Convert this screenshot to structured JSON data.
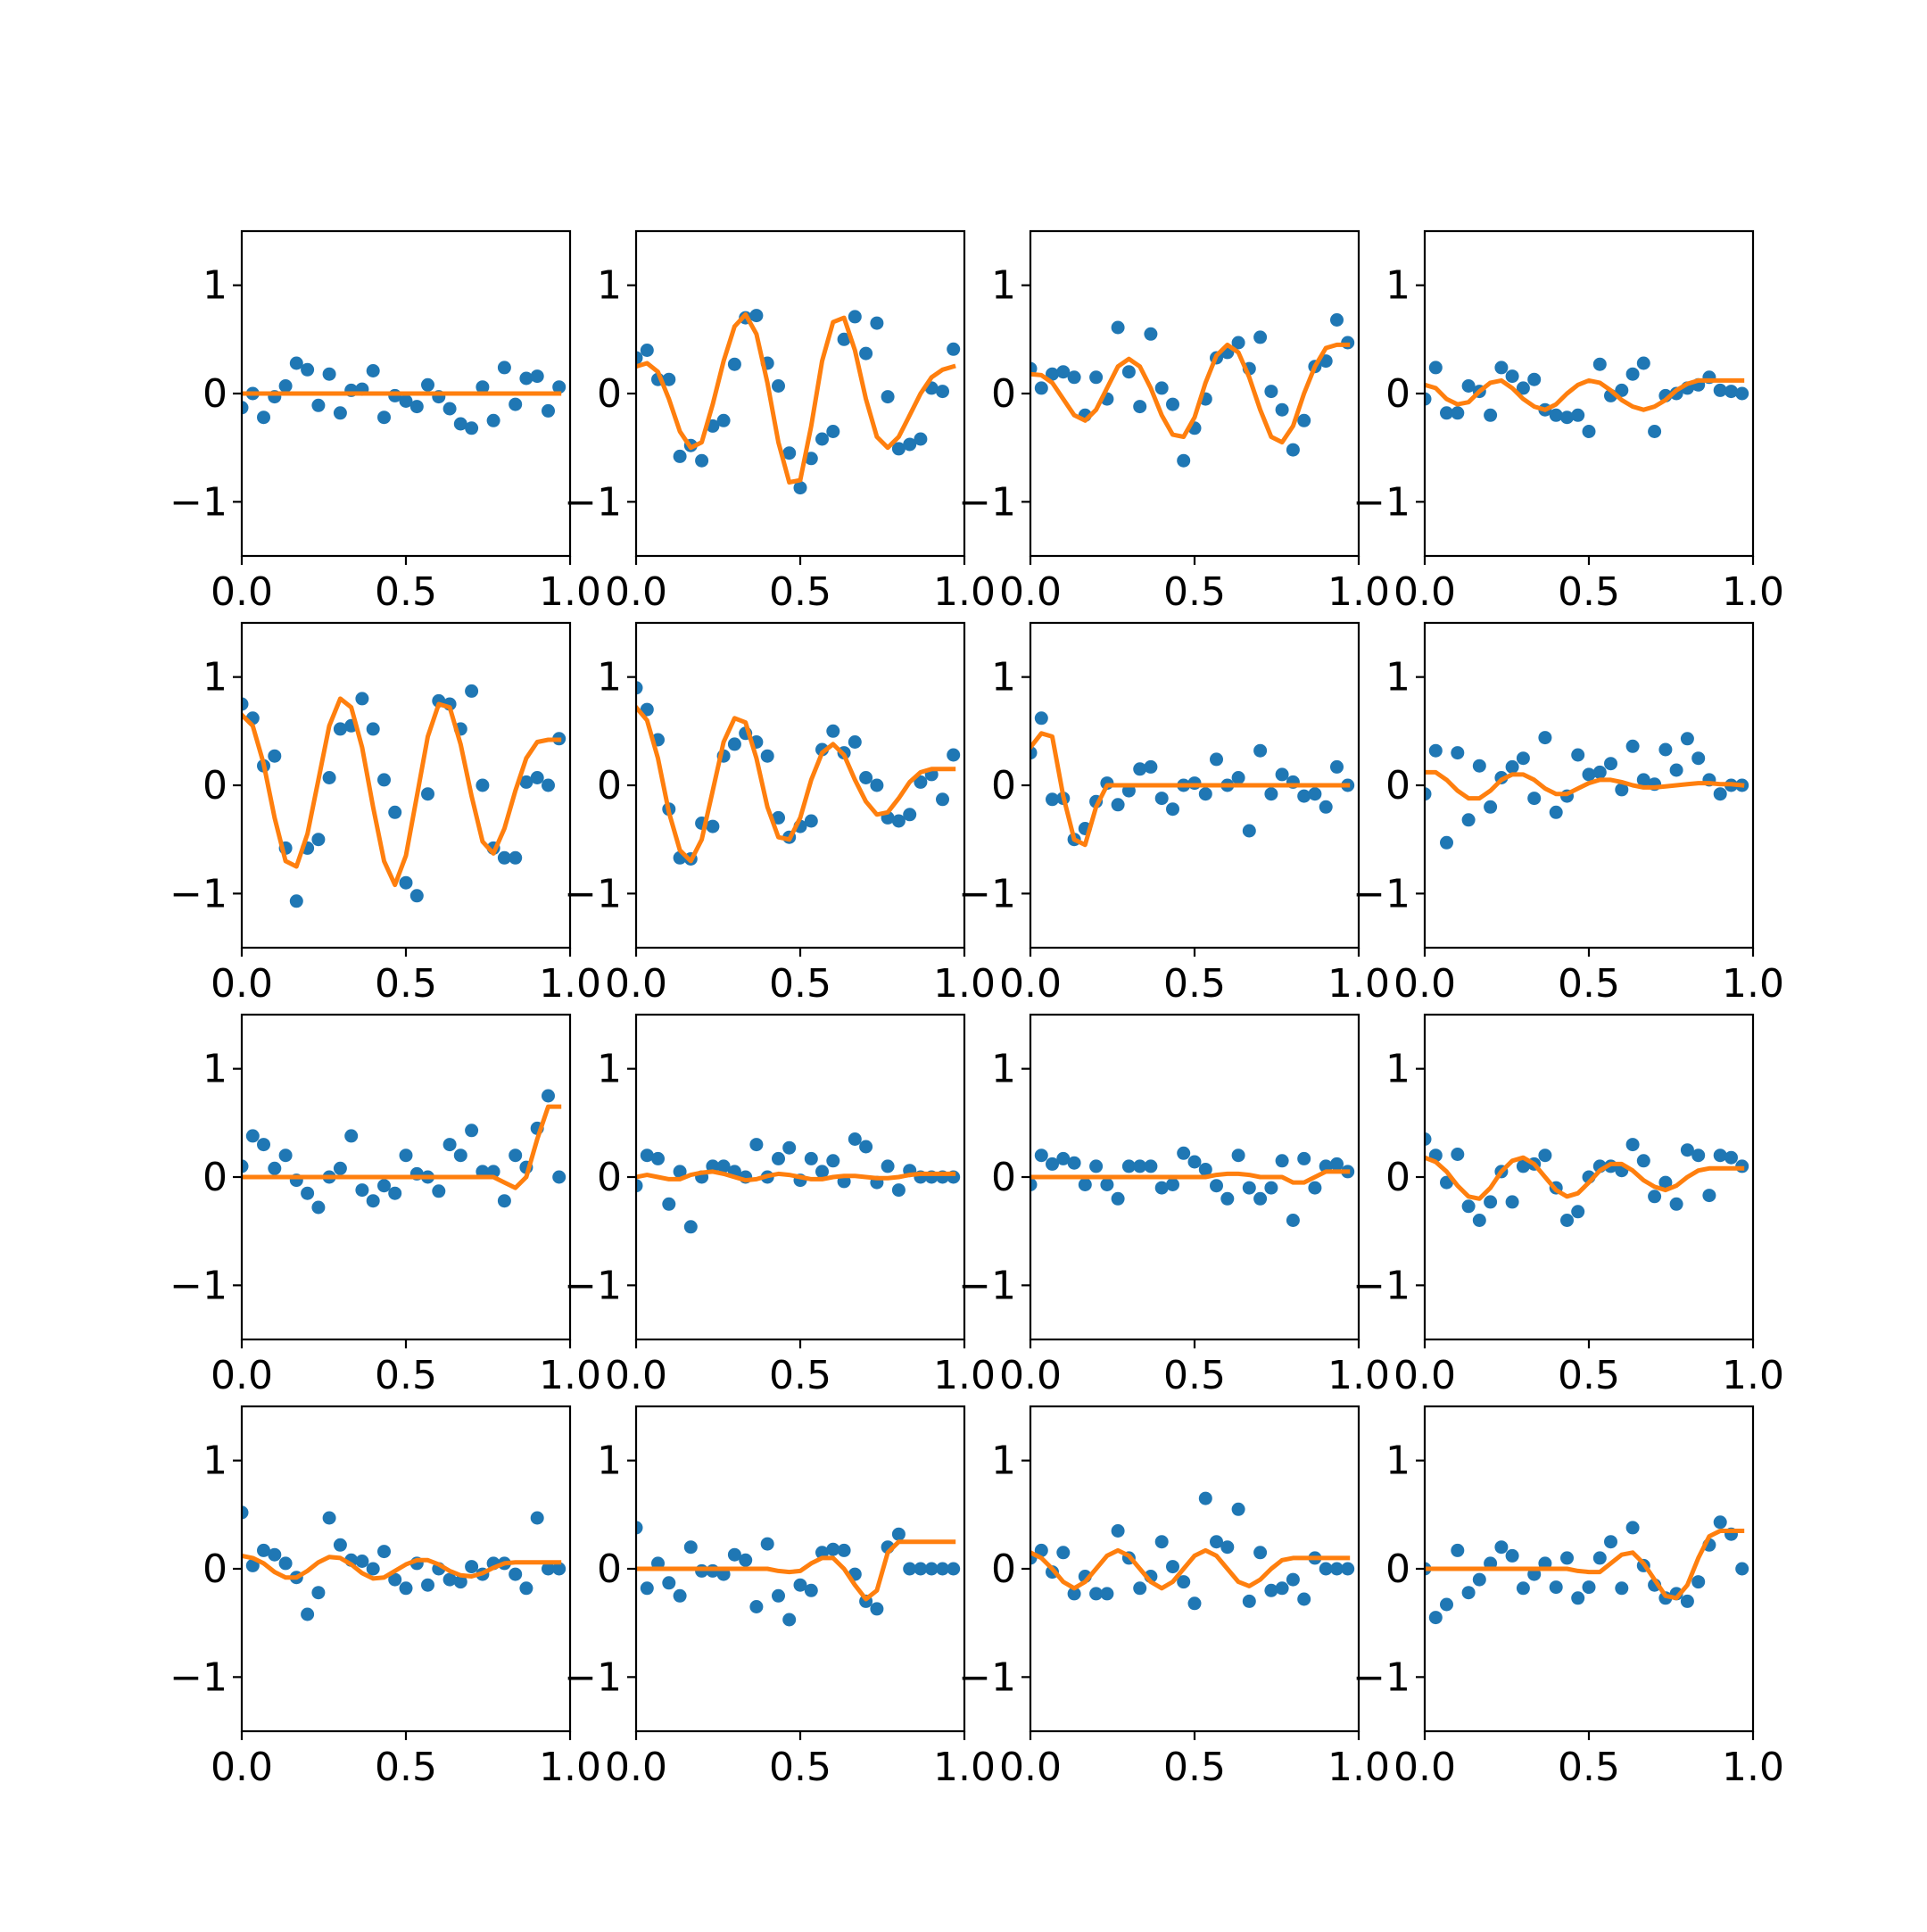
{
  "chart_data": {
    "type": "scatter",
    "layout": "4x4 grid of subplots",
    "xlim": [
      0,
      1
    ],
    "ylim": [
      -1.5,
      1.5
    ],
    "xticks": [
      0,
      0.5,
      1
    ],
    "xtick_labels": [
      "0.0",
      "0.5",
      "1.0"
    ],
    "yticks": [
      -1,
      0,
      1
    ],
    "ytick_labels": [
      "−1",
      "0",
      "1"
    ],
    "grid": false,
    "colors": {
      "points": "#1f77b4",
      "line": "#ff7f0e"
    },
    "x": [
      0,
      0.0333,
      0.0667,
      0.1,
      0.1333,
      0.1667,
      0.2,
      0.2333,
      0.2667,
      0.3,
      0.3333,
      0.3667,
      0.4,
      0.4333,
      0.4667,
      0.5,
      0.5333,
      0.5667,
      0.6,
      0.6333,
      0.6667,
      0.7,
      0.7333,
      0.7667,
      0.8,
      0.8333,
      0.8667,
      0.9,
      0.9333,
      0.9667
    ],
    "panels": [
      {
        "points": [
          -0.13,
          0.0,
          -0.22,
          -0.03,
          0.07,
          0.28,
          0.22,
          -0.11,
          0.18,
          -0.18,
          0.03,
          0.04,
          0.21,
          -0.22,
          -0.02,
          -0.07,
          -0.12,
          0.08,
          -0.03,
          -0.14,
          -0.28,
          -0.32,
          0.06,
          -0.25,
          0.24,
          -0.1,
          0.14,
          0.16,
          -0.16,
          0.06
        ],
        "fit": [
          0,
          0,
          0,
          0,
          0,
          0,
          0,
          0,
          0,
          0,
          0,
          0,
          0,
          0,
          0,
          0,
          0,
          0,
          0,
          0,
          0,
          0,
          0,
          0,
          0,
          0,
          0,
          0,
          0,
          0
        ]
      },
      {
        "points": [
          0.33,
          0.4,
          0.13,
          0.13,
          -0.58,
          -0.48,
          -0.62,
          -0.3,
          -0.25,
          0.27,
          0.7,
          0.72,
          0.28,
          0.07,
          -0.55,
          -0.87,
          -0.6,
          -0.42,
          -0.35,
          0.5,
          0.71,
          0.37,
          0.65,
          -0.03,
          -0.51,
          -0.47,
          -0.42,
          0.05,
          0.02,
          0.41
        ],
        "fit": [
          0.25,
          0.28,
          0.2,
          -0.05,
          -0.35,
          -0.5,
          -0.45,
          -0.1,
          0.3,
          0.62,
          0.73,
          0.55,
          0.1,
          -0.45,
          -0.82,
          -0.8,
          -0.3,
          0.3,
          0.66,
          0.7,
          0.4,
          -0.05,
          -0.4,
          -0.5,
          -0.4,
          -0.2,
          0.0,
          0.15,
          0.22,
          0.25
        ]
      },
      {
        "points": [
          0.23,
          0.05,
          0.18,
          0.2,
          0.15,
          -0.2,
          0.15,
          -0.05,
          0.61,
          0.2,
          -0.12,
          0.55,
          0.05,
          -0.1,
          -0.62,
          -0.32,
          -0.05,
          0.33,
          0.38,
          0.47,
          0.23,
          0.52,
          0.02,
          -0.15,
          -0.52,
          -0.25,
          0.25,
          0.3,
          0.68,
          0.47
        ],
        "fit": [
          0.18,
          0.17,
          0.1,
          -0.05,
          -0.2,
          -0.25,
          -0.15,
          0.05,
          0.25,
          0.32,
          0.25,
          0.05,
          -0.2,
          -0.38,
          -0.4,
          -0.22,
          0.1,
          0.35,
          0.45,
          0.38,
          0.15,
          -0.15,
          -0.4,
          -0.45,
          -0.3,
          0.0,
          0.25,
          0.42,
          0.45,
          0.45
        ]
      },
      {
        "points": [
          -0.05,
          0.24,
          -0.18,
          -0.18,
          0.07,
          0.02,
          -0.2,
          0.24,
          0.16,
          0.05,
          0.13,
          -0.15,
          -0.2,
          -0.22,
          -0.2,
          -0.35,
          0.27,
          -0.02,
          0.03,
          0.18,
          0.28,
          -0.35,
          -0.02,
          0.0,
          0.05,
          0.08,
          0.15,
          0.03,
          0.02,
          0.0
        ],
        "fit": [
          0.08,
          0.05,
          -0.05,
          -0.1,
          -0.08,
          0.02,
          0.1,
          0.12,
          0.05,
          -0.05,
          -0.12,
          -0.15,
          -0.1,
          0.0,
          0.08,
          0.12,
          0.1,
          0.03,
          -0.06,
          -0.12,
          -0.15,
          -0.12,
          -0.06,
          0.03,
          0.09,
          0.12,
          0.12,
          0.12,
          0.12,
          0.12
        ]
      },
      {
        "points": [
          0.75,
          0.62,
          0.18,
          0.27,
          -0.58,
          -1.07,
          -0.58,
          -0.5,
          0.07,
          0.52,
          0.55,
          0.8,
          0.52,
          0.05,
          -0.25,
          -0.9,
          -1.02,
          -0.08,
          0.78,
          0.75,
          0.52,
          0.87,
          0.0,
          -0.58,
          -0.67,
          -0.67,
          0.03,
          0.07,
          0.0,
          0.43
        ],
        "fit": [
          0.65,
          0.55,
          0.2,
          -0.3,
          -0.7,
          -0.75,
          -0.45,
          0.05,
          0.55,
          0.8,
          0.72,
          0.35,
          -0.2,
          -0.7,
          -0.92,
          -0.65,
          -0.1,
          0.45,
          0.75,
          0.72,
          0.38,
          -0.1,
          -0.52,
          -0.63,
          -0.4,
          -0.05,
          0.25,
          0.4,
          0.42,
          0.42
        ]
      },
      {
        "points": [
          0.9,
          0.7,
          0.42,
          -0.22,
          -0.67,
          -0.68,
          -0.35,
          -0.38,
          0.27,
          0.38,
          0.48,
          0.4,
          0.27,
          -0.3,
          -0.48,
          -0.38,
          -0.33,
          0.33,
          0.5,
          0.3,
          0.4,
          0.07,
          0.0,
          -0.3,
          -0.33,
          -0.27,
          0.03,
          0.1,
          -0.13,
          0.28
        ],
        "fit": [
          0.72,
          0.6,
          0.25,
          -0.25,
          -0.6,
          -0.7,
          -0.5,
          -0.05,
          0.4,
          0.62,
          0.58,
          0.25,
          -0.2,
          -0.48,
          -0.5,
          -0.3,
          0.05,
          0.3,
          0.38,
          0.28,
          0.05,
          -0.15,
          -0.27,
          -0.25,
          -0.12,
          0.03,
          0.12,
          0.15,
          0.15,
          0.15
        ]
      },
      {
        "points": [
          0.3,
          0.62,
          -0.13,
          -0.12,
          -0.5,
          -0.4,
          -0.15,
          0.02,
          -0.18,
          -0.05,
          0.15,
          0.17,
          -0.12,
          -0.22,
          0.0,
          0.02,
          -0.08,
          0.24,
          0.0,
          0.07,
          -0.42,
          0.32,
          -0.08,
          0.1,
          0.03,
          -0.1,
          -0.08,
          -0.2,
          0.17,
          0.0
        ],
        "fit": [
          0.35,
          0.48,
          0.45,
          -0.1,
          -0.5,
          -0.55,
          -0.2,
          0.0,
          0.0,
          0.0,
          0.0,
          0.0,
          0.0,
          0.0,
          0.0,
          0.0,
          0.0,
          0.0,
          0.0,
          0.0,
          0.0,
          0.0,
          0.0,
          0.0,
          0.0,
          0.0,
          0.0,
          0.0,
          0.0,
          0.0
        ]
      },
      {
        "points": [
          -0.08,
          0.32,
          -0.53,
          0.3,
          -0.32,
          0.18,
          -0.2,
          0.07,
          0.17,
          0.25,
          -0.12,
          0.44,
          -0.25,
          -0.1,
          0.28,
          0.1,
          0.12,
          0.2,
          -0.04,
          0.36,
          0.05,
          0.01,
          0.33,
          0.14,
          0.43,
          0.25,
          0.05,
          -0.08,
          0.0,
          0.0
        ],
        "fit": [
          0.12,
          0.12,
          0.05,
          -0.05,
          -0.12,
          -0.12,
          -0.05,
          0.05,
          0.1,
          0.1,
          0.05,
          -0.03,
          -0.08,
          -0.08,
          -0.03,
          0.02,
          0.05,
          0.05,
          0.03,
          0.0,
          -0.02,
          -0.02,
          -0.01,
          0.0,
          0.01,
          0.02,
          0.02,
          0.01,
          0.01,
          0.0
        ]
      },
      {
        "points": [
          0.1,
          0.38,
          0.3,
          0.08,
          0.2,
          -0.03,
          -0.15,
          -0.28,
          0.0,
          0.08,
          0.38,
          -0.12,
          -0.22,
          -0.08,
          -0.15,
          0.2,
          0.03,
          0.0,
          -0.13,
          0.3,
          0.2,
          0.43,
          0.05,
          0.05,
          -0.22,
          0.2,
          0.09,
          0.45,
          0.75,
          0.0
        ],
        "fit": [
          0,
          0,
          0,
          0,
          0,
          0,
          0,
          0,
          0,
          0,
          0,
          0,
          0,
          0,
          0,
          0,
          0,
          0,
          0,
          0,
          0,
          0,
          0,
          0,
          -0.05,
          -0.1,
          0.0,
          0.35,
          0.65,
          0.65
        ]
      },
      {
        "points": [
          -0.08,
          0.2,
          0.17,
          -0.25,
          0.05,
          -0.46,
          0.0,
          0.1,
          0.1,
          0.05,
          0.0,
          0.3,
          0.0,
          0.17,
          0.27,
          -0.03,
          0.17,
          0.05,
          0.15,
          -0.04,
          0.35,
          0.28,
          -0.05,
          0.1,
          -0.12,
          0.06,
          0.0,
          0.0,
          0.0,
          0.0
        ],
        "fit": [
          0.0,
          0.02,
          0.0,
          -0.02,
          -0.02,
          0.02,
          0.04,
          0.05,
          0.03,
          0.0,
          -0.03,
          -0.02,
          0.01,
          0.03,
          0.02,
          0.0,
          -0.02,
          -0.02,
          0.0,
          0.01,
          0.01,
          0.0,
          -0.01,
          -0.01,
          0.0,
          0.02,
          0.03,
          0.03,
          0.03,
          0.03
        ]
      },
      {
        "points": [
          -0.07,
          0.2,
          0.12,
          0.17,
          0.13,
          -0.07,
          0.1,
          -0.07,
          -0.2,
          0.1,
          0.1,
          0.1,
          -0.1,
          -0.07,
          0.22,
          0.14,
          0.07,
          -0.08,
          -0.2,
          0.2,
          -0.1,
          -0.2,
          -0.1,
          0.15,
          -0.4,
          0.17,
          -0.1,
          0.1,
          0.12,
          0.05
        ],
        "fit": [
          0,
          0,
          0,
          0,
          0,
          0,
          0,
          0,
          0,
          0,
          0,
          0,
          0,
          0,
          0,
          0,
          0,
          0.02,
          0.03,
          0.03,
          0.02,
          0.0,
          0.0,
          0.0,
          -0.05,
          -0.05,
          0.0,
          0.05,
          0.05,
          0.05
        ]
      },
      {
        "points": [
          0.35,
          0.2,
          -0.05,
          0.21,
          -0.27,
          -0.4,
          -0.23,
          0.05,
          -0.23,
          0.1,
          0.12,
          0.2,
          -0.1,
          -0.4,
          -0.32,
          0.0,
          0.1,
          0.1,
          0.06,
          0.3,
          0.15,
          -0.18,
          -0.05,
          -0.25,
          0.25,
          0.2,
          -0.17,
          0.2,
          0.18,
          0.1
        ],
        "fit": [
          0.18,
          0.14,
          0.05,
          -0.08,
          -0.18,
          -0.2,
          -0.1,
          0.05,
          0.15,
          0.18,
          0.12,
          0.0,
          -0.12,
          -0.18,
          -0.15,
          -0.05,
          0.06,
          0.12,
          0.12,
          0.06,
          -0.03,
          -0.09,
          -0.12,
          -0.08,
          0.0,
          0.06,
          0.08,
          0.08,
          0.08,
          0.08
        ]
      },
      {
        "points": [
          0.52,
          0.03,
          0.17,
          0.13,
          0.05,
          -0.08,
          -0.42,
          -0.22,
          0.47,
          0.22,
          0.08,
          0.07,
          0.0,
          0.16,
          -0.1,
          -0.18,
          0.05,
          -0.15,
          0.0,
          -0.1,
          -0.12,
          0.02,
          -0.05,
          0.05,
          0.05,
          -0.05,
          -0.18,
          0.47,
          0.0,
          0.0
        ],
        "fit": [
          0.12,
          0.1,
          0.05,
          -0.03,
          -0.08,
          -0.08,
          -0.02,
          0.06,
          0.11,
          0.1,
          0.04,
          -0.04,
          -0.09,
          -0.08,
          -0.02,
          0.04,
          0.08,
          0.08,
          0.04,
          -0.02,
          -0.06,
          -0.07,
          -0.04,
          0.01,
          0.05,
          0.06,
          0.06,
          0.06,
          0.06,
          0.06
        ]
      },
      {
        "points": [
          0.38,
          -0.18,
          0.05,
          -0.13,
          -0.25,
          0.2,
          -0.02,
          -0.02,
          -0.05,
          0.13,
          0.08,
          -0.35,
          0.23,
          -0.25,
          -0.47,
          -0.15,
          -0.2,
          0.15,
          0.18,
          0.17,
          -0.05,
          -0.3,
          -0.37,
          0.2,
          0.32,
          0.0,
          0.0,
          0.0,
          0.0,
          0.0
        ],
        "fit": [
          0,
          0,
          0,
          0,
          0,
          0,
          0,
          0,
          0,
          0,
          0,
          0,
          0,
          -0.02,
          -0.03,
          -0.02,
          0.05,
          0.1,
          0.1,
          0.0,
          -0.15,
          -0.28,
          -0.2,
          0.15,
          0.25,
          0.25,
          0.25,
          0.25,
          0.25,
          0.25
        ]
      },
      {
        "points": [
          0.1,
          0.17,
          -0.03,
          0.15,
          -0.23,
          -0.07,
          -0.23,
          -0.23,
          0.35,
          0.1,
          -0.18,
          -0.07,
          0.25,
          0.02,
          -0.12,
          -0.32,
          0.65,
          0.25,
          0.2,
          0.55,
          -0.3,
          0.15,
          -0.2,
          -0.18,
          -0.1,
          -0.28,
          0.1,
          0.0,
          0.0,
          0.0
        ],
        "fit": [
          0.15,
          0.1,
          0.0,
          -0.12,
          -0.18,
          -0.12,
          0.0,
          0.12,
          0.17,
          0.12,
          0.0,
          -0.12,
          -0.18,
          -0.12,
          0.0,
          0.12,
          0.17,
          0.12,
          0.0,
          -0.12,
          -0.16,
          -0.1,
          0.0,
          0.08,
          0.1,
          0.1,
          0.1,
          0.1,
          0.1,
          0.1
        ]
      },
      {
        "points": [
          0.0,
          -0.45,
          -0.33,
          0.17,
          -0.22,
          -0.1,
          0.05,
          0.2,
          0.12,
          -0.18,
          -0.05,
          0.05,
          -0.17,
          0.1,
          -0.27,
          -0.17,
          0.1,
          0.25,
          -0.18,
          0.38,
          0.03,
          -0.15,
          -0.27,
          -0.23,
          -0.3,
          -0.12,
          0.22,
          0.43,
          0.32,
          0.0
        ],
        "fit": [
          0,
          0,
          0,
          0,
          0,
          0,
          0,
          0,
          0,
          0,
          0,
          0,
          0,
          0,
          -0.02,
          -0.03,
          -0.03,
          0.05,
          0.13,
          0.15,
          0.05,
          -0.1,
          -0.25,
          -0.27,
          -0.15,
          0.1,
          0.3,
          0.35,
          0.35,
          0.35
        ]
      }
    ]
  }
}
